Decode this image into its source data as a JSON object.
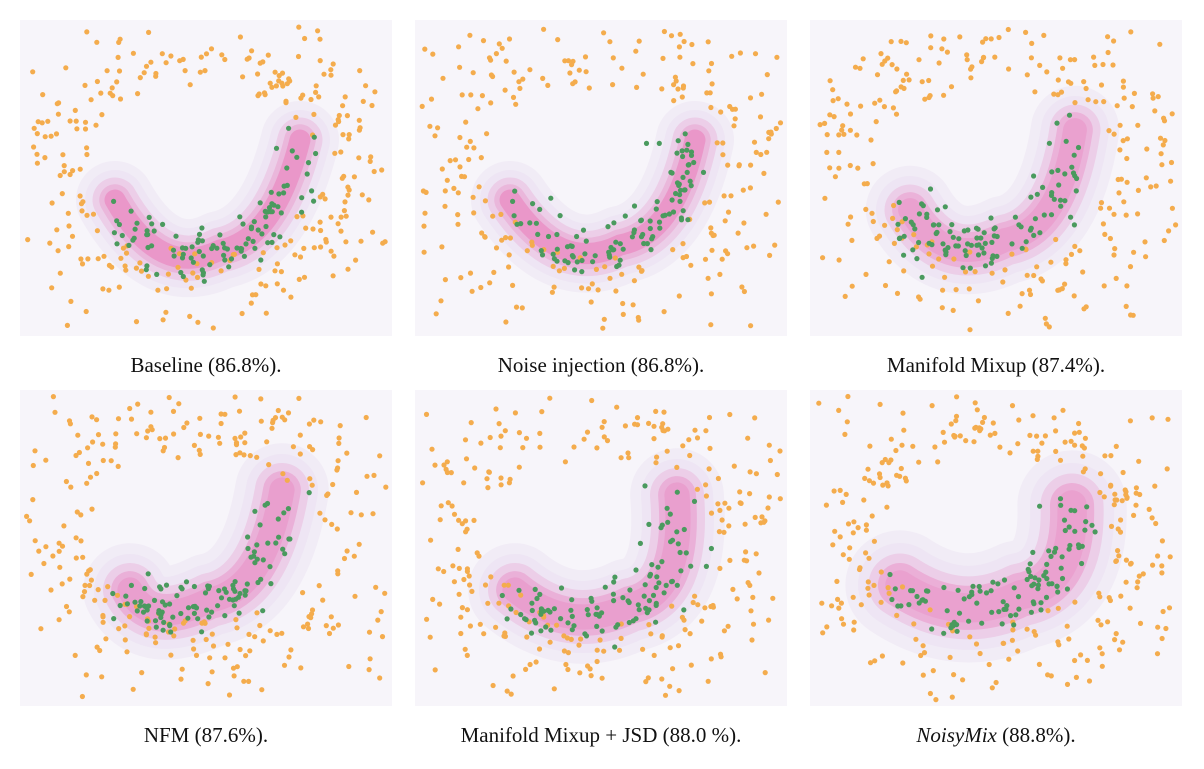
{
  "colors": {
    "plot_background": "#f7f5fa",
    "outer_point": "#f4ac4d",
    "inner_point": "#4a9a5e",
    "density_light": "#ece3f3",
    "density_dark": "#e98cc3"
  },
  "panels": [
    {
      "method": "Baseline",
      "score": "(86.8%).",
      "italic": false
    },
    {
      "method": "Noise injection",
      "score": "(86.8%).",
      "italic": false
    },
    {
      "method": "Manifold Mixup",
      "score": "(87.4%).",
      "italic": false
    },
    {
      "method": "NFM",
      "score": "(87.6%).",
      "italic": false
    },
    {
      "method": "Manifold Mixup + JSD",
      "score": "(88.0 %).",
      "italic": false
    },
    {
      "method": "NoisyMix",
      "score": "(88.8%).",
      "italic": true
    }
  ]
}
